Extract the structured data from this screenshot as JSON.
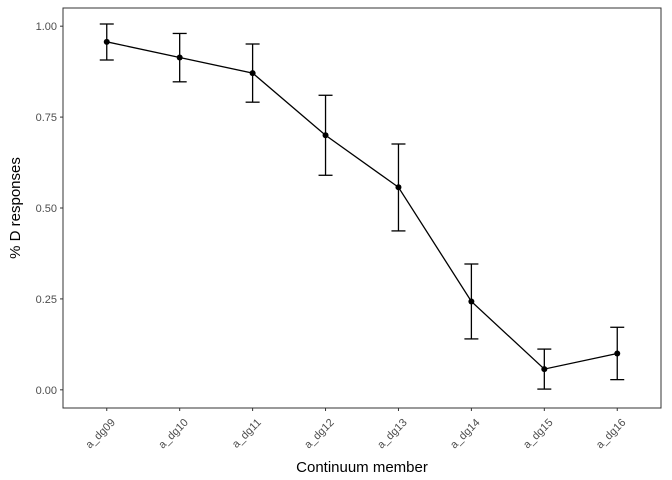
{
  "chart_data": {
    "type": "line",
    "title": "",
    "xlabel": "Continuum member",
    "ylabel": "% D responses",
    "categories": [
      "a_dg09",
      "a_dg10",
      "a_dg11",
      "a_dg12",
      "a_dg13",
      "a_dg14",
      "a_dg15",
      "a_dg16"
    ],
    "series": [
      {
        "values": [
          0.957,
          0.914,
          0.871,
          0.7,
          0.557,
          0.243,
          0.057,
          0.1
        ],
        "error_low": [
          0.907,
          0.847,
          0.791,
          0.59,
          0.437,
          0.14,
          0.002,
          0.028
        ],
        "error_high": [
          1.006,
          0.98,
          0.951,
          0.81,
          0.676,
          0.346,
          0.112,
          0.172
        ]
      }
    ],
    "ylim": [
      -0.05,
      1.05
    ],
    "yticks": [
      0.0,
      0.25,
      0.5,
      0.75,
      1.0
    ],
    "ytick_labels": [
      "0.00",
      "0.25",
      "0.50",
      "0.75",
      "1.00"
    ],
    "grid": false,
    "colors": {
      "line": "#000000",
      "panel_border": "#333333",
      "tick_text": "#4d4d4d"
    }
  }
}
